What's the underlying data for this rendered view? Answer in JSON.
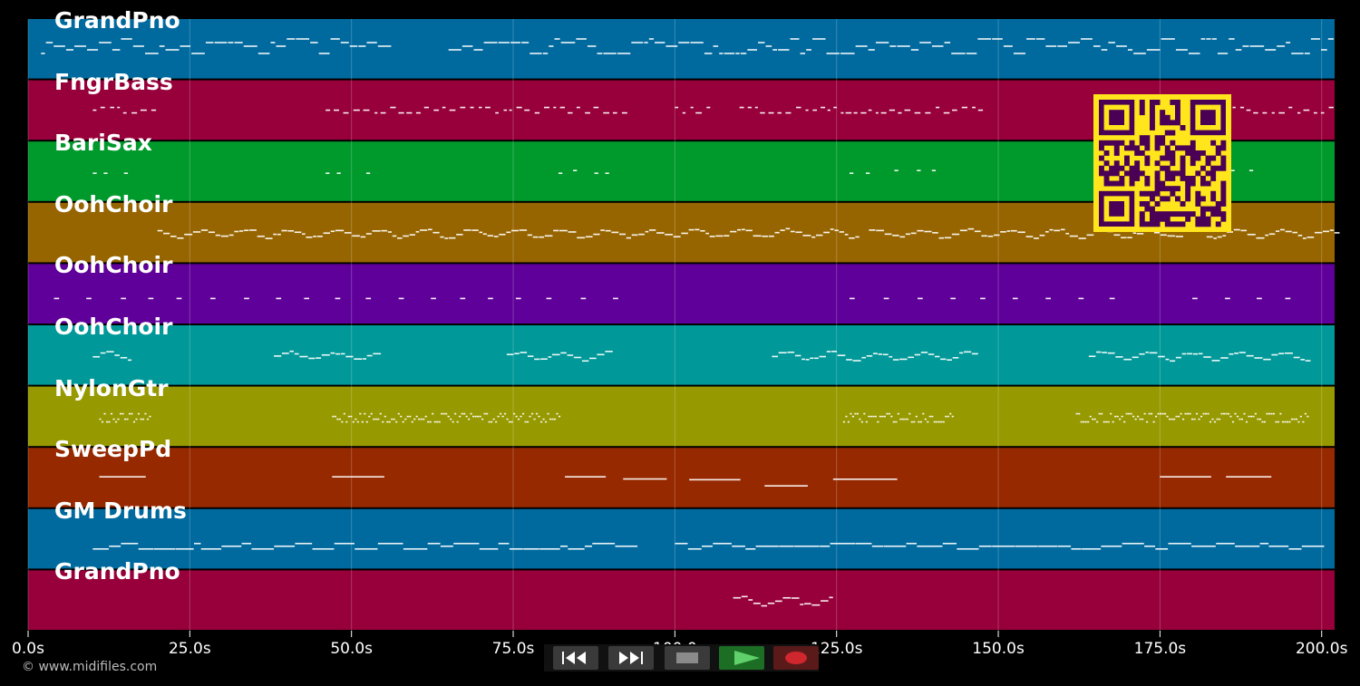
{
  "tracks": [
    {
      "label": "GrandPno",
      "color": "#006a9e"
    },
    {
      "label": "FngrBass",
      "color": "#97003a"
    },
    {
      "label": "BariSax",
      "color": "#009a2c"
    },
    {
      "label": "OohChoir",
      "color": "#976500"
    },
    {
      "label": "OohChoir",
      "color": "#60009a"
    },
    {
      "label": "OohChoir",
      "color": "#009898"
    },
    {
      "label": "NylonGtr",
      "color": "#979900"
    },
    {
      "label": "SweepPd",
      "color": "#962900"
    },
    {
      "label": "GM Drums",
      "color": "#006a9e"
    },
    {
      "label": "GrandPno",
      "color": "#97003a"
    }
  ],
  "timeline": {
    "unit": "s",
    "max": 202,
    "ticks": [
      "0.0s",
      "25.0s",
      "50.0s",
      "75.0s",
      "100.0",
      "125.0s",
      "150.0s",
      "175.0s",
      "200.0s"
    ]
  },
  "copyright": "© www.midifiles.com",
  "transport": {
    "buttons": [
      "rewind",
      "fast-forward",
      "stop",
      "play",
      "record"
    ],
    "colors": {
      "rewind": "#3a3a3a",
      "fast-forward": "#3a3a3a",
      "stop": "#3a3a3a",
      "play": "#1c6e24",
      "record": "#5a1a1a"
    }
  },
  "qr_code": {
    "background": "#ffe51c",
    "foreground": "#4a0055"
  }
}
